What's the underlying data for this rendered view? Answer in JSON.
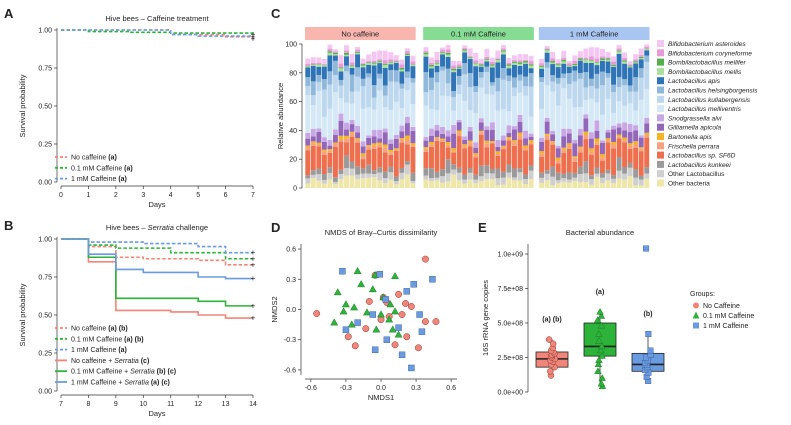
{
  "figure": {
    "panels": {
      "A": {
        "letter": "A"
      },
      "B": {
        "letter": "B"
      },
      "C": {
        "letter": "C"
      },
      "D": {
        "letter": "D"
      },
      "E": {
        "letter": "E"
      }
    }
  },
  "colors": {
    "no_caffeine": "#f0857a",
    "caffeine_01": "#2db23a",
    "caffeine_1": "#6a9be0",
    "strip_no": "#f8b6ae",
    "strip_01": "#86dc93",
    "strip_1": "#a9c6f3"
  },
  "chart_data": [
    {
      "id": "A",
      "type": "line",
      "title": "Hive bees – Caffeine treatment",
      "xlabel": "Days",
      "ylabel": "Survival probability",
      "xlim": [
        0,
        7
      ],
      "ylim": [
        0,
        1
      ],
      "xticks": [
        "0",
        "1",
        "2",
        "3",
        "4",
        "5",
        "6",
        "7"
      ],
      "yticks": [
        "0.00",
        "0.25",
        "0.50",
        "0.75",
        "1.00"
      ],
      "series": [
        {
          "name": "No caffeine",
          "suffix": "(a)",
          "dashed": true,
          "color": "#f0857a",
          "steps": [
            [
              0,
              1.0
            ],
            [
              4,
              0.97
            ],
            [
              6,
              0.955
            ],
            [
              7,
              0.94
            ]
          ]
        },
        {
          "name": "0.1 mM Caffeine",
          "suffix": "(a)",
          "dashed": true,
          "color": "#2db23a",
          "steps": [
            [
              0,
              1.0
            ],
            [
              1,
              0.99
            ],
            [
              2.5,
              0.985
            ],
            [
              4,
              0.98
            ],
            [
              7,
              0.97
            ]
          ]
        },
        {
          "name": "1 mM Caffeine",
          "suffix": "(a)",
          "dashed": true,
          "color": "#6a9be0",
          "steps": [
            [
              0,
              1.0
            ],
            [
              4,
              0.97
            ],
            [
              5,
              0.96
            ],
            [
              7,
              0.955
            ]
          ]
        }
      ]
    },
    {
      "id": "B",
      "type": "line",
      "title_prefix": "Hive bees – ",
      "title_italic": "Serratia",
      "title_suffix": " challenge",
      "xlabel": "Days",
      "ylabel": "Survival probability",
      "xlim": [
        7,
        14
      ],
      "ylim": [
        0,
        1
      ],
      "xticks": [
        "7",
        "8",
        "9",
        "10",
        "11",
        "12",
        "13",
        "14"
      ],
      "yticks": [
        "0.00",
        "0.25",
        "0.50",
        "0.75",
        "1.00"
      ],
      "series": [
        {
          "name": "No caffeine",
          "suffix": "(a) (b)",
          "dashed": true,
          "color": "#f0857a",
          "steps": [
            [
              7,
              1.0
            ],
            [
              8,
              0.95
            ],
            [
              9,
              0.88
            ],
            [
              10,
              0.87
            ],
            [
              12,
              0.86
            ],
            [
              13,
              0.83
            ],
            [
              14,
              0.83
            ]
          ]
        },
        {
          "name": "0.1 mM Caffeine",
          "suffix": "(a) (b)",
          "dashed": true,
          "color": "#2db23a",
          "steps": [
            [
              7,
              1.0
            ],
            [
              8,
              0.96
            ],
            [
              9,
              0.94
            ],
            [
              11,
              0.91
            ],
            [
              13,
              0.87
            ],
            [
              14,
              0.87
            ]
          ]
        },
        {
          "name": "1 mM Caffeine",
          "suffix": "(a)",
          "dashed": true,
          "color": "#6a9be0",
          "steps": [
            [
              7,
              1.0
            ],
            [
              8,
              0.98
            ],
            [
              10,
              0.97
            ],
            [
              12,
              0.95
            ],
            [
              13,
              0.91
            ],
            [
              14,
              0.91
            ]
          ]
        },
        {
          "name": "No caffeine + ",
          "italic": "Serratia",
          "suffix": "(c)",
          "dashed": false,
          "color": "#f0857a",
          "steps": [
            [
              7,
              1.0
            ],
            [
              8,
              0.85
            ],
            [
              9,
              0.53
            ],
            [
              11,
              0.52
            ],
            [
              12,
              0.5
            ],
            [
              13,
              0.48
            ],
            [
              14,
              0.48
            ]
          ]
        },
        {
          "name": "0.1 mM Caffeine + ",
          "italic": "Serratia",
          "suffix": "(b) (c)",
          "dashed": false,
          "color": "#2db23a",
          "steps": [
            [
              7,
              1.0
            ],
            [
              8,
              0.88
            ],
            [
              9,
              0.61
            ],
            [
              12,
              0.59
            ],
            [
              13,
              0.56
            ],
            [
              14,
              0.56
            ]
          ]
        },
        {
          "name": "1 mM Caffeine + ",
          "italic": "Serratia",
          "suffix": "(a) (c)",
          "dashed": false,
          "color": "#6a9be0",
          "steps": [
            [
              7,
              1.0
            ],
            [
              8,
              0.9
            ],
            [
              9,
              0.8
            ],
            [
              10,
              0.78
            ],
            [
              12,
              0.75
            ],
            [
              13,
              0.74
            ],
            [
              14,
              0.74
            ]
          ]
        }
      ]
    },
    {
      "id": "C",
      "type": "bar",
      "stacked": true,
      "ylabel": "Relative abundance",
      "ylim": [
        0,
        100
      ],
      "yticks": [
        "0",
        "20",
        "40",
        "60",
        "80",
        "100"
      ],
      "groups": [
        "No caffeine",
        "0.1 mM Caffeine",
        "1 mM Caffeine"
      ],
      "bars_per_group": 20,
      "categories": [
        "Bifidobacterium asteroides",
        "Bifidobacterium coryneforme",
        "Bombilactobacillus mellifer",
        "Bombilactobacillus mellis",
        "Lactobacillus apis",
        "Lactobacillus helsingborgensis",
        "Lactobacillus kullabergensis",
        "Lactobacillus melliventris",
        "Snodgrassella alvi",
        "Gilliamella apicola",
        "Bartonella apis",
        "Frischella perrara",
        "Lactobacillus sp. SF6D",
        "Lactobacillus kunkeei",
        "Other Lactobacillus",
        "Other bacteria"
      ],
      "category_colors": [
        "#f3c7f1",
        "#e79ad6",
        "#55b04b",
        "#a9e0a0",
        "#2f74b7",
        "#8fb8db",
        "#bcd7ee",
        "#d5e8f6",
        "#c7a7e4",
        "#9266b8",
        "#f6b324",
        "#f5a27d",
        "#ee6f4e",
        "#9a9a9a",
        "#cfcfcf",
        "#efe7a9"
      ],
      "mean_composition": [
        4,
        1.5,
        0.8,
        1.2,
        8,
        7,
        14,
        20,
        4,
        6,
        1.5,
        2,
        16,
        5,
        4,
        5
      ]
    },
    {
      "id": "D",
      "type": "scatter",
      "title": "NMDS of Bray–Curtis dissimilarity",
      "xlabel": "NMDS1",
      "ylabel": "NMDS2",
      "xlim": [
        -0.65,
        0.65
      ],
      "ylim": [
        -0.65,
        0.65
      ],
      "xticks": [
        "-0.6",
        "-0.3",
        "0.0",
        "0.3",
        "0.6"
      ],
      "yticks": [
        "-0.6",
        "-0.3",
        "0.0",
        "0.3",
        "0.6"
      ],
      "series": [
        {
          "name": "No Caffeine",
          "marker": "circle",
          "color": "#f0857a",
          "x": [
            0.38,
            -0.05,
            0.02,
            0.15,
            -0.1,
            0.05,
            0.21,
            0.26,
            0.47,
            0.38,
            0.18,
            0.07,
            -0.13,
            -0.22,
            0.12,
            0.32,
            -0.55,
            -0.28,
            0.0,
            0.22
          ],
          "y": [
            0.5,
            0.34,
            0.12,
            0.15,
            0.08,
            0.07,
            0.06,
            0.03,
            -0.12,
            -0.12,
            -0.05,
            -0.07,
            -0.19,
            -0.36,
            -0.35,
            -0.38,
            -0.04,
            -0.27,
            -0.1,
            -0.27
          ]
        },
        {
          "name": "0.1 mM Caffeine",
          "marker": "triangle",
          "color": "#2db23a",
          "x": [
            -0.2,
            -0.05,
            0.12,
            -0.37,
            -0.17,
            -0.07,
            0.02,
            -0.3,
            -0.23,
            -0.12,
            0.0,
            0.12,
            0.07,
            -0.4,
            -0.25,
            -0.04,
            0.1,
            0.15,
            -0.32,
            0.08
          ],
          "y": [
            0.38,
            0.34,
            0.33,
            0.17,
            0.25,
            0.2,
            0.12,
            0.05,
            0.02,
            -0.03,
            -0.05,
            -0.02,
            -0.1,
            -0.13,
            -0.15,
            -0.2,
            -0.2,
            -0.25,
            -0.02,
            0.05
          ]
        },
        {
          "name": "1 mM Caffeine",
          "marker": "square",
          "color": "#6a9be0",
          "x": [
            -0.33,
            -0.01,
            0.28,
            0.44,
            0.22,
            0.04,
            -0.07,
            -0.2,
            0.33,
            0.15,
            0.35,
            0.05,
            -0.05,
            0.18,
            -0.3,
            0.26
          ],
          "y": [
            0.38,
            0.35,
            0.25,
            0.3,
            0.18,
            0.1,
            -0.05,
            -0.13,
            -0.05,
            -0.18,
            -0.22,
            -0.3,
            -0.4,
            -0.45,
            -0.2,
            -0.58
          ]
        }
      ]
    },
    {
      "id": "E",
      "type": "box",
      "title": "Bacterial abundance",
      "ylabel": "16S rRNA gene copies",
      "ylim": [
        0,
        1000000000
      ],
      "yticks": [
        "0.0e+00",
        "2.5e+08",
        "5.0e+08",
        "7.5e+08",
        "1.0e+09"
      ],
      "legend_title": "Groups:",
      "groups": [
        {
          "name": "No Caffeine",
          "marker": "circle",
          "color": "#f0857a",
          "letter": "(a) (b)",
          "q1": 180000000,
          "median": 240000000,
          "q3": 290000000,
          "whisker_low": 120000000,
          "whisker_high": 380000000,
          "points": [
            120000000,
            150000000,
            180000000,
            200000000,
            220000000,
            230000000,
            240000000,
            250000000,
            260000000,
            270000000,
            280000000,
            290000000,
            300000000,
            320000000,
            350000000,
            380000000
          ]
        },
        {
          "name": "0.1 mM Caffeine",
          "marker": "triangle",
          "color": "#2db23a",
          "letter": "(a)",
          "q1": 260000000,
          "median": 330000000,
          "q3": 500000000,
          "whisker_low": 40000000,
          "whisker_high": 580000000,
          "points": [
            40000000,
            60000000,
            100000000,
            150000000,
            200000000,
            230000000,
            260000000,
            300000000,
            330000000,
            370000000,
            420000000,
            480000000,
            520000000,
            550000000,
            580000000
          ]
        },
        {
          "name": "1 mM Caffeine",
          "marker": "square",
          "color": "#6a9be0",
          "letter": "(b)",
          "q1": 150000000,
          "median": 200000000,
          "q3": 280000000,
          "whisker_low": 80000000,
          "whisker_high": 420000000,
          "points": [
            80000000,
            110000000,
            140000000,
            160000000,
            180000000,
            200000000,
            210000000,
            230000000,
            250000000,
            270000000,
            300000000,
            420000000,
            1040000000
          ]
        }
      ]
    }
  ]
}
